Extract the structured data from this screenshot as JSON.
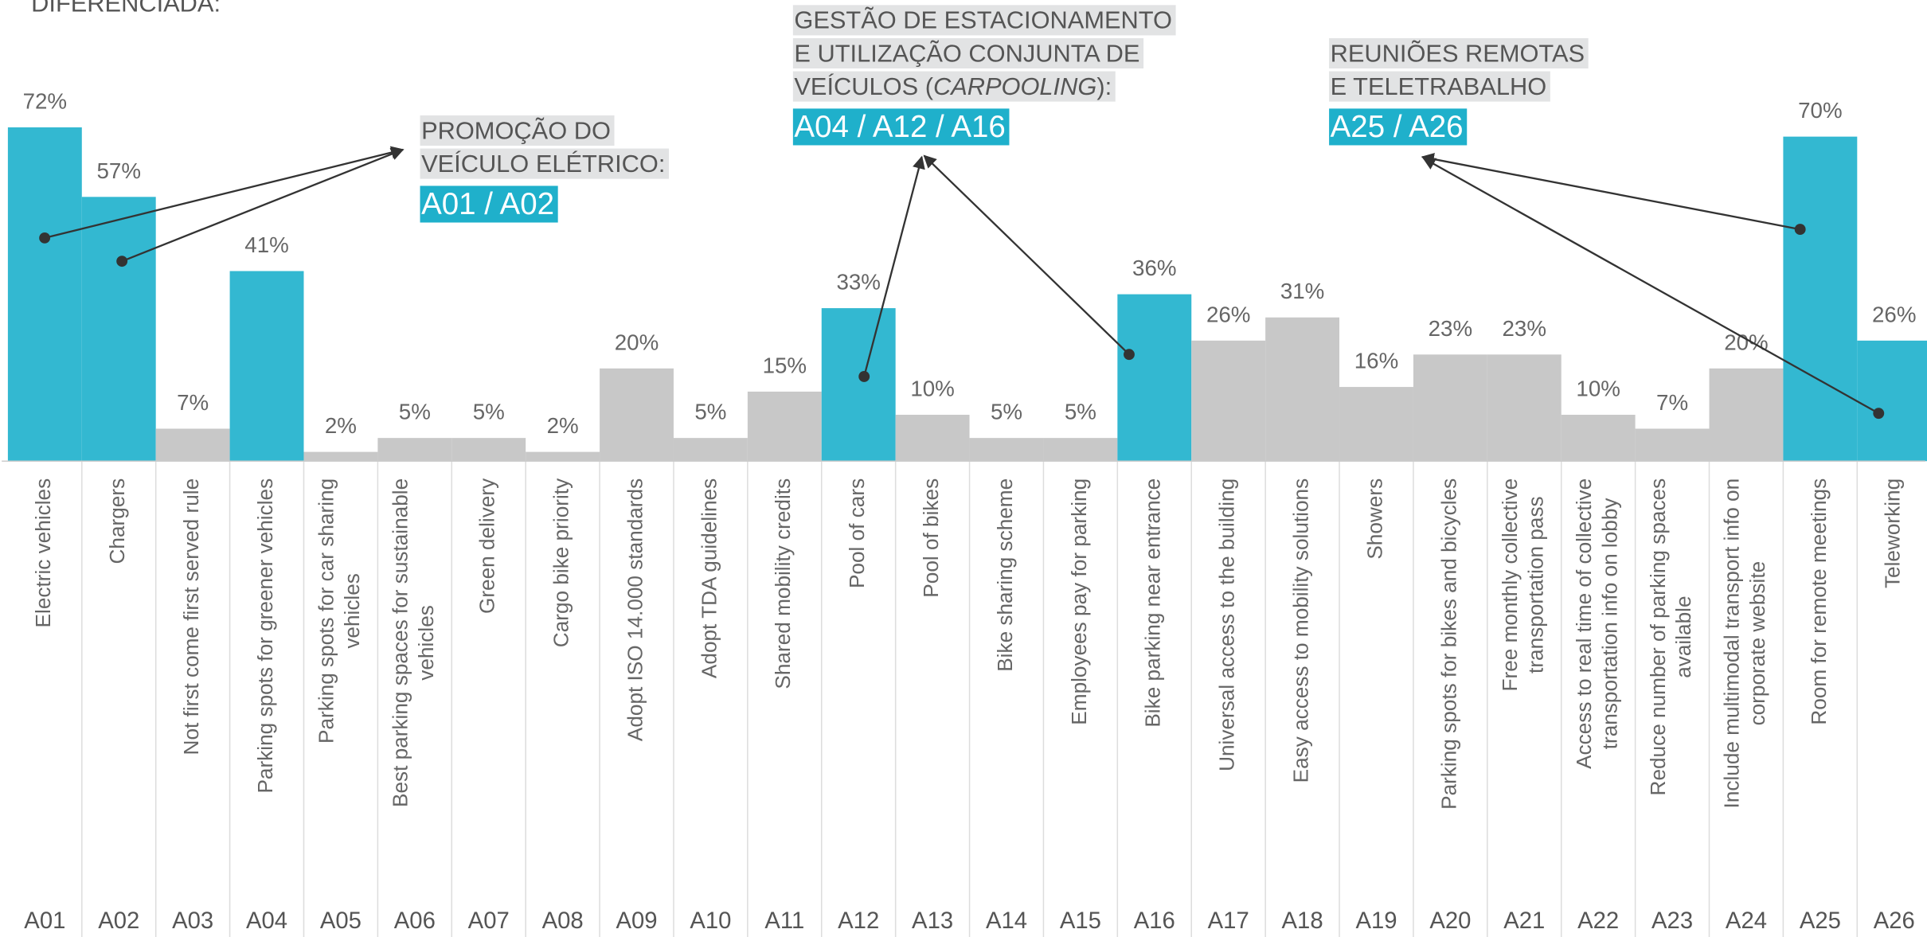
{
  "chart_data": {
    "type": "bar",
    "title": "DIFERENCIADA:",
    "categories": [
      "A01",
      "A02",
      "A03",
      "A04",
      "A05",
      "A06",
      "A07",
      "A08",
      "A09",
      "A10",
      "A11",
      "A12",
      "A13",
      "A14",
      "A15",
      "A16",
      "A17",
      "A18",
      "A19",
      "A20",
      "A21",
      "A22",
      "A23",
      "A24",
      "A25",
      "A26"
    ],
    "descriptions": [
      [
        "Electric vehicles"
      ],
      [
        "Chargers"
      ],
      [
        "Not first come first served rule"
      ],
      [
        "Parking spots for greener vehicles"
      ],
      [
        "Parking spots for car sharing",
        "vehicles"
      ],
      [
        "Best parking spaces for sustainable",
        "vehicles"
      ],
      [
        "Green delivery"
      ],
      [
        "Cargo bike priority"
      ],
      [
        "Adopt ISO 14.000 standards"
      ],
      [
        "Adopt TDA guidelines"
      ],
      [
        "Shared mobility credits"
      ],
      [
        "Pool of cars"
      ],
      [
        "Pool of bikes"
      ],
      [
        "Bike sharing scheme"
      ],
      [
        "Employees pay for parking"
      ],
      [
        "Bike parking near entrance"
      ],
      [
        "Universal access to the building"
      ],
      [
        "Easy access to mobility solutions"
      ],
      [
        "Showers"
      ],
      [
        "Parking spots for bikes and bicycles"
      ],
      [
        "Free monthly collective",
        "transportation pass"
      ],
      [
        "Access to real time of collective",
        "transportation info on lobby"
      ],
      [
        "Reduce number of parking spaces",
        "available"
      ],
      [
        "Include multimodal transport info on",
        "corporate website"
      ],
      [
        "Room for remote meetings"
      ],
      [
        "Teleworking"
      ]
    ],
    "values": [
      72,
      57,
      7,
      41,
      2,
      5,
      5,
      2,
      20,
      5,
      15,
      33,
      10,
      5,
      5,
      36,
      26,
      31,
      16,
      23,
      23,
      10,
      7,
      20,
      70,
      26
    ],
    "value_labels": [
      "72%",
      "57%",
      "7%",
      "41%",
      "2%",
      "5%",
      "5%",
      "2%",
      "20%",
      "5%",
      "15%",
      "33%",
      "10%",
      "5%",
      "5%",
      "36%",
      "26%",
      "31%",
      "16%",
      "23%",
      "23%",
      "10%",
      "7%",
      "20%",
      "70%",
      "26%"
    ],
    "colors": [
      "#33b8d1",
      "#33b8d1",
      "#c8c8c8",
      "#33b8d1",
      "#c8c8c8",
      "#c8c8c8",
      "#c8c8c8",
      "#c8c8c8",
      "#c8c8c8",
      "#c8c8c8",
      "#c8c8c8",
      "#33b8d1",
      "#c8c8c8",
      "#c8c8c8",
      "#c8c8c8",
      "#33b8d1",
      "#c8c8c8",
      "#c8c8c8",
      "#c8c8c8",
      "#c8c8c8",
      "#c8c8c8",
      "#c8c8c8",
      "#c8c8c8",
      "#c8c8c8",
      "#33b8d1",
      "#33b8d1"
    ],
    "annotations": [
      {
        "lines": [
          [
            {
              "text": "PROMOÇÃO DO"
            }
          ],
          [
            {
              "text": "VEÍCULO ELÉTRICO:"
            }
          ]
        ],
        "codes": "A01 / A02"
      },
      {
        "lines": [
          [
            {
              "text": "GESTÃO DE ESTACIONAMENTO"
            }
          ],
          [
            {
              "text": "E UTILIZAÇÃO CONJUNTA DE"
            }
          ],
          [
            {
              "text": "VEÍCULOS ("
            },
            {
              "text": "CARPOOLING",
              "italic": true
            },
            {
              "text": "):"
            }
          ]
        ],
        "codes": "A04 / A12 / A16"
      },
      {
        "lines": [
          [
            {
              "text": "REUNIÕES REMOTAS"
            }
          ],
          [
            {
              "text": "E TELETRABALHO"
            }
          ]
        ],
        "codes": "A25 / A26"
      }
    ]
  }
}
